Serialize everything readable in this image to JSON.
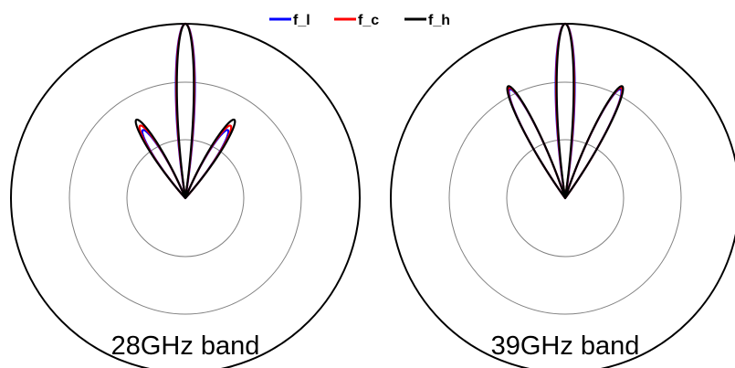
{
  "chart_data": [
    {
      "type": "polar",
      "title": "28GHz band",
      "legend_position": "top-center",
      "rings": [
        0.333,
        0.667,
        1.0
      ],
      "series": [
        {
          "name": "f_l",
          "color": "#0000ff",
          "main_lobe": {
            "length": 1.0,
            "halfwidth_deg": 9.5
          },
          "side_lobe": {
            "length": 0.46,
            "center_deg": 32,
            "halfwidth_deg": 10
          }
        },
        {
          "name": "f_c",
          "color": "#ff0000",
          "main_lobe": {
            "length": 1.0,
            "halfwidth_deg": 9.0
          },
          "side_lobe": {
            "length": 0.49,
            "center_deg": 32,
            "halfwidth_deg": 10
          }
        },
        {
          "name": "f_h",
          "color": "#000000",
          "main_lobe": {
            "length": 1.0,
            "halfwidth_deg": 8.5
          },
          "side_lobe": {
            "length": 0.53,
            "center_deg": 32,
            "halfwidth_deg": 10
          }
        }
      ]
    },
    {
      "type": "polar",
      "title": "39GHz band",
      "rings": [
        0.333,
        0.667,
        1.0
      ],
      "series": [
        {
          "name": "f_l",
          "color": "#0000ff",
          "main_lobe": {
            "length": 1.0,
            "halfwidth_deg": 9.5
          },
          "side_lobe": {
            "length": 0.7,
            "center_deg": 27,
            "halfwidth_deg": 9
          }
        },
        {
          "name": "f_c",
          "color": "#ff0000",
          "main_lobe": {
            "length": 1.0,
            "halfwidth_deg": 9.0
          },
          "side_lobe": {
            "length": 0.71,
            "center_deg": 27,
            "halfwidth_deg": 9
          }
        },
        {
          "name": "f_h",
          "color": "#000000",
          "main_lobe": {
            "length": 1.0,
            "halfwidth_deg": 8.5
          },
          "side_lobe": {
            "length": 0.72,
            "center_deg": 27,
            "halfwidth_deg": 9
          }
        }
      ]
    }
  ]
}
